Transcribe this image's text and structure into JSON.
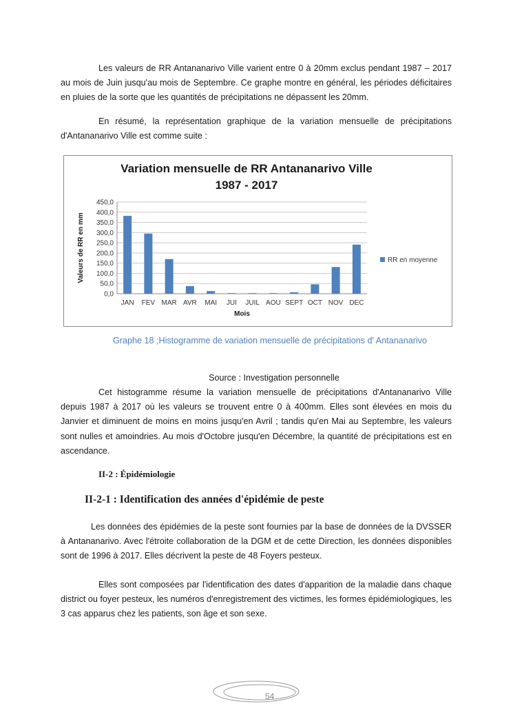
{
  "paragraphs": {
    "p1": "Les valeurs de RR Antananarivo Ville varient entre 0 à 20mm exclus pendant 1987 – 2017 au mois de Juin jusqu'au mois de Septembre. Ce graphe montre en général, les périodes déficitaires en pluies de la sorte que les quantités de précipitations ne dépassent les 20mm.",
    "p2": "En résumé, la représentation graphique de la variation mensuelle de précipitations d'Antananarivo Ville est comme suite :",
    "caption": "Graphe 18 ;Histogramme de variation mensuelle de précipitations d' Antananarivo",
    "source": "Source : Investigation personnelle",
    "p3": "Cet histogramme résume la variation mensuelle de précipitations d'Antananarivo Ville depuis 1987 à 2017 où les valeurs se trouvent entre 0 à 400mm. Elles sont élevées en mois du Janvier et diminuent de moins en moins jusqu'en Avril ; tandis qu'en Mai au Septembre, les valeurs sont nulles et amoindries. Au mois d'Octobre jusqu'en Décembre, la quantité de précipitations est en ascendance.",
    "h1": "II-2 : Épidémiologie",
    "h2": "II-2-1 : Identification des années d'épidémie de peste",
    "p4": "Les données des épidémies de la peste sont fournies par la base de données de la DVSSER à Antananarivo. Avec l'étroite collaboration de la DGM et de cette Direction, les données disponibles sont de 1996 à 2017. Elles décrivent la peste de 48 Foyers pesteux.",
    "p5": "Elles sont composées par l'identification des dates d'apparition de la maladie dans chaque district ou foyer pesteux, les numéros d'enregistrement des victimes, les formes épidémiologiques, les 3 cas apparus chez les patients, son âge et son sexe."
  },
  "footer": {
    "page_number": "54"
  },
  "chart_data": {
    "type": "bar",
    "title": "Variation mensuelle de RR Antananarivo Ville",
    "subtitle": "1987 - 2017",
    "xlabel": "Mois",
    "ylabel": "Valeurs de RR en mm",
    "categories": [
      "JAN",
      "FEV",
      "MAR",
      "AVR",
      "MAI",
      "JUI",
      "JUIL",
      "AOU",
      "SEPT",
      "OCT",
      "NOV",
      "DEC"
    ],
    "series": [
      {
        "name": "RR en moyenne",
        "values": [
          382,
          295,
          170,
          37,
          13,
          3,
          3,
          3,
          7,
          46,
          131,
          241
        ],
        "color": "#4f81bd"
      }
    ],
    "ylim": [
      0,
      450
    ],
    "yticks": [
      "0,0",
      "50,0",
      "100,0",
      "150,0",
      "200,0",
      "250,0",
      "300,0",
      "350,0",
      "400,0",
      "450,0"
    ],
    "grid": true,
    "legend": "right"
  }
}
